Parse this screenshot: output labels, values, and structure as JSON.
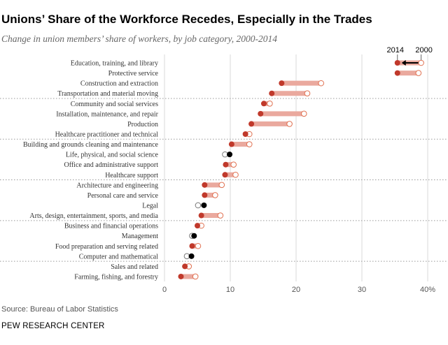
{
  "title": "Unions’ Share of the Workforce Recedes, Especially in the Trades",
  "subtitle": "Change in union members’ share of workers, by job category, 2000-2014",
  "source": "Source: Bureau of Labor Statistics",
  "org": "PEW RESEARCH CENTER",
  "chart_data": {
    "type": "dumbbell",
    "xlim": [
      0,
      40
    ],
    "ticks": [
      "0",
      "10",
      "20",
      "30",
      "40%"
    ],
    "tick_values": [
      0,
      10,
      20,
      30,
      40
    ],
    "legend": {
      "start": "2000",
      "end": "2014"
    },
    "colors": {
      "decline_2014": "#c0392b",
      "bar": "#eaa99e",
      "open_stroke": "#e07050",
      "increase_2014": "#000000",
      "increase_2000_stroke": "#777777"
    },
    "groups_after_rows": [
      4,
      8,
      12,
      16,
      20
    ],
    "rows": [
      {
        "category": "Education, training, and library",
        "y2000": 39.0,
        "y2014": 35.4
      },
      {
        "category": "Protective service",
        "y2000": 38.6,
        "y2014": 35.4
      },
      {
        "category": "Construction and extraction",
        "y2000": 23.8,
        "y2014": 17.8
      },
      {
        "category": "Transportation and material moving",
        "y2000": 21.7,
        "y2014": 16.3
      },
      {
        "category": "Community and social services",
        "y2000": 16.0,
        "y2014": 15.1
      },
      {
        "category": "Installation, maintenance, and repair",
        "y2000": 21.2,
        "y2014": 14.6
      },
      {
        "category": "Production",
        "y2000": 19.0,
        "y2014": 13.2
      },
      {
        "category": "Healthcare practitioner and technical",
        "y2000": 12.9,
        "y2014": 12.3
      },
      {
        "category": "Building and grounds cleaning and maintenance",
        "y2000": 12.9,
        "y2014": 10.2
      },
      {
        "category": "Life, physical, and social science",
        "y2000": 9.2,
        "y2014": 9.9
      },
      {
        "category": "Office and administrative support",
        "y2000": 10.5,
        "y2014": 9.3
      },
      {
        "category": "Healthcare support",
        "y2000": 10.8,
        "y2014": 9.2
      },
      {
        "category": "Architecture and engineering",
        "y2000": 8.7,
        "y2014": 6.1
      },
      {
        "category": "Personal care and service",
        "y2000": 7.7,
        "y2014": 6.1
      },
      {
        "category": "Legal",
        "y2000": 5.1,
        "y2014": 6.0
      },
      {
        "category": "Arts, design, entertainment, sports, and media",
        "y2000": 8.5,
        "y2014": 5.6
      },
      {
        "category": "Business and financial operations",
        "y2000": 5.6,
        "y2014": 5.0
      },
      {
        "category": "Management",
        "y2000": 4.2,
        "y2014": 4.5
      },
      {
        "category": "Food preparation and serving related",
        "y2000": 5.1,
        "y2014": 4.2
      },
      {
        "category": "Computer and mathematical",
        "y2000": 3.4,
        "y2014": 4.1
      },
      {
        "category": "Sales and related",
        "y2000": 3.7,
        "y2014": 3.1
      },
      {
        "category": "Farming, fishing, and forestry",
        "y2000": 4.7,
        "y2014": 2.5
      }
    ]
  }
}
